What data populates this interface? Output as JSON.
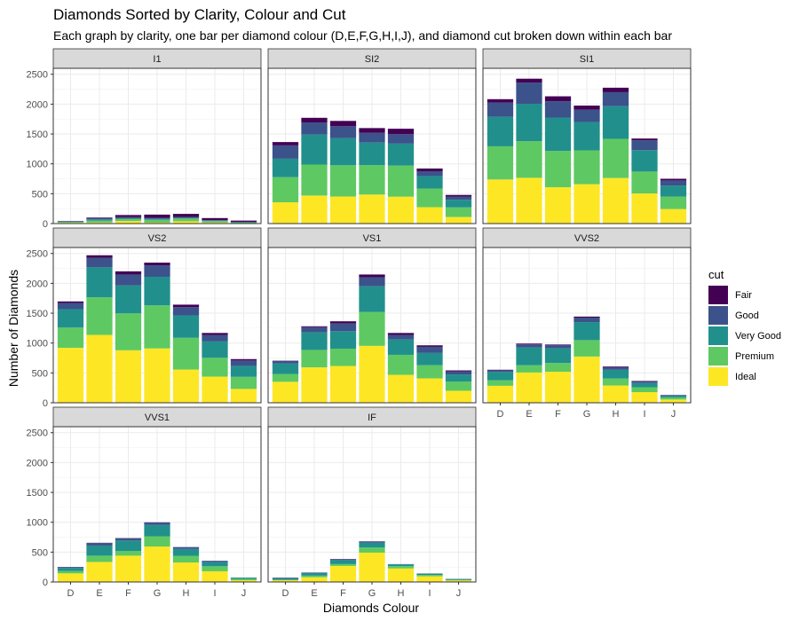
{
  "chart_data": {
    "type": "bar",
    "stacked": true,
    "faceted_by": "clarity",
    "title": "Diamonds Sorted by Clarity, Colour and Cut",
    "subtitle": "Each graph by clarity, one bar per diamond colour (D,E,F,G,H,I,J), and diamond cut broken down within each bar",
    "xlabel": "Diamonds Colour",
    "ylabel": "Number of Diamonds",
    "ylim": [
      0,
      2600
    ],
    "yticks": [
      0,
      500,
      1000,
      1500,
      2000,
      2500
    ],
    "grid": true,
    "categories": [
      "D",
      "E",
      "F",
      "G",
      "H",
      "I",
      "J"
    ],
    "legend": {
      "title": "cut",
      "placement": "right",
      "items": [
        {
          "name": "Fair",
          "color": "#440154"
        },
        {
          "name": "Good",
          "color": "#3b528b"
        },
        {
          "name": "Very Good",
          "color": "#21908c"
        },
        {
          "name": "Premium",
          "color": "#5ec962"
        },
        {
          "name": "Ideal",
          "color": "#fde725"
        }
      ]
    },
    "stack_order": [
      "Ideal",
      "Premium",
      "Very Good",
      "Good",
      "Fair"
    ],
    "facets": [
      {
        "label": "I1",
        "series": {
          "Fair": [
            4,
            9,
            35,
            53,
            52,
            34,
            23
          ],
          "Good": [
            8,
            23,
            19,
            19,
            14,
            9,
            4
          ],
          "Very Good": [
            5,
            22,
            13,
            16,
            12,
            8,
            8
          ],
          "Premium": [
            12,
            30,
            34,
            46,
            46,
            24,
            13
          ],
          "Ideal": [
            13,
            18,
            42,
            16,
            38,
            17,
            2
          ]
        }
      },
      {
        "label": "SI2",
        "series": {
          "Fair": [
            56,
            78,
            89,
            80,
            91,
            45,
            27
          ],
          "Good": [
            223,
            202,
            201,
            163,
            158,
            81,
            53
          ],
          "Very Good": [
            309,
            503,
            453,
            378,
            368,
            210,
            128
          ],
          "Premium": [
            421,
            519,
            523,
            492,
            521,
            312,
            161
          ],
          "Ideal": [
            356,
            469,
            453,
            486,
            450,
            274,
            110
          ]
        }
      },
      {
        "label": "SI1",
        "series": {
          "Fair": [
            58,
            65,
            83,
            69,
            75,
            30,
            28
          ],
          "Good": [
            237,
            355,
            273,
            207,
            235,
            165,
            88
          ],
          "Very Good": [
            494,
            626,
            559,
            474,
            547,
            358,
            182
          ],
          "Premium": [
            556,
            614,
            608,
            566,
            655,
            367,
            209
          ],
          "Ideal": [
            738,
            766,
            608,
            660,
            763,
            504,
            243
          ]
        }
      },
      {
        "label": "VS2",
        "series": {
          "Fair": [
            25,
            42,
            53,
            45,
            41,
            32,
            23
          ],
          "Good": [
            104,
            160,
            184,
            192,
            138,
            110,
            90
          ],
          "Very Good": [
            309,
            503,
            466,
            479,
            376,
            274,
            184
          ],
          "Premium": [
            339,
            629,
            619,
            721,
            532,
            315,
            202
          ],
          "Ideal": [
            920,
            1136,
            879,
            910,
            556,
            438,
            232
          ]
        }
      },
      {
        "label": "VS1",
        "series": {
          "Fair": [
            5,
            14,
            33,
            45,
            32,
            25,
            16
          ],
          "Good": [
            43,
            89,
            132,
            152,
            77,
            103,
            52
          ],
          "Very Good": [
            175,
            293,
            293,
            432,
            257,
            205,
            120
          ],
          "Premium": [
            131,
            292,
            290,
            566,
            336,
            221,
            153
          ],
          "Ideal": [
            351,
            593,
            616,
            953,
            467,
            408,
            201
          ]
        }
      },
      {
        "label": "VVS2",
        "series": {
          "Fair": [
            9,
            13,
            10,
            17,
            11,
            8,
            1
          ],
          "Good": [
            25,
            52,
            50,
            75,
            45,
            26,
            13
          ],
          "Very Good": [
            141,
            298,
            249,
            302,
            145,
            71,
            29
          ],
          "Premium": [
            94,
            121,
            146,
            275,
            118,
            82,
            34
          ],
          "Ideal": [
            284,
            507,
            520,
            774,
            289,
            178,
            54
          ]
        }
      },
      {
        "label": "VVS1",
        "series": {
          "Fair": [
            3,
            3,
            5,
            3,
            1,
            1,
            1
          ],
          "Good": [
            13,
            43,
            35,
            41,
            31,
            22,
            1
          ],
          "Very Good": [
            52,
            170,
            174,
            190,
            115,
            69,
            19
          ],
          "Premium": [
            40,
            105,
            80,
            171,
            112,
            84,
            24
          ],
          "Ideal": [
            144,
            335,
            440,
            594,
            326,
            179,
            29
          ]
        }
      },
      {
        "label": "IF",
        "series": {
          "Fair": [
            3,
            0,
            4,
            2,
            0,
            0,
            0
          ],
          "Good": [
            9,
            9,
            15,
            22,
            4,
            6,
            6
          ],
          "Very Good": [
            23,
            43,
            67,
            79,
            29,
            19,
            8
          ],
          "Premium": [
            10,
            27,
            31,
            87,
            40,
            23,
            12
          ],
          "Ideal": [
            28,
            79,
            268,
            491,
            226,
            95,
            25
          ]
        }
      }
    ]
  }
}
